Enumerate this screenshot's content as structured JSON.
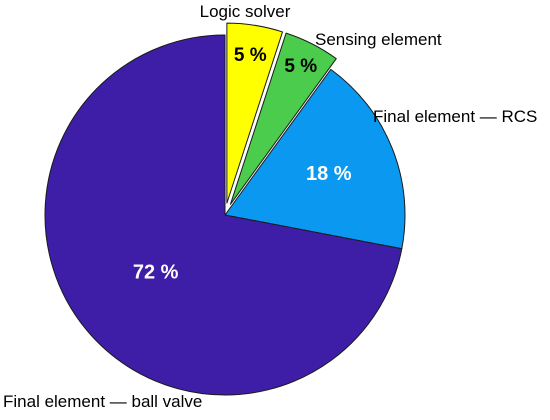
{
  "chart_data": {
    "type": "pie",
    "title": "",
    "slices": [
      {
        "label": "Logic solver",
        "value": 5,
        "value_label": "5 %",
        "color": "#ffff00",
        "value_text_color": "#000000",
        "exploded": true
      },
      {
        "label": "Sensing element",
        "value": 5,
        "value_label": "5 %",
        "color": "#4ccc4c",
        "value_text_color": "#000000",
        "exploded": true
      },
      {
        "label": "Final element — RCS",
        "value": 18,
        "value_label": "18 %",
        "color": "#0a98f0",
        "value_text_color": "#ffffff",
        "exploded": false
      },
      {
        "label": "Final element — ball valve",
        "value": 72,
        "value_label": "72 %",
        "color": "#3e1ea6",
        "value_text_color": "#ffffff",
        "exploded": false
      }
    ],
    "start_angle": "12 o'clock",
    "direction": "clockwise",
    "legend": "none",
    "border_color": "#1a1a1a"
  }
}
